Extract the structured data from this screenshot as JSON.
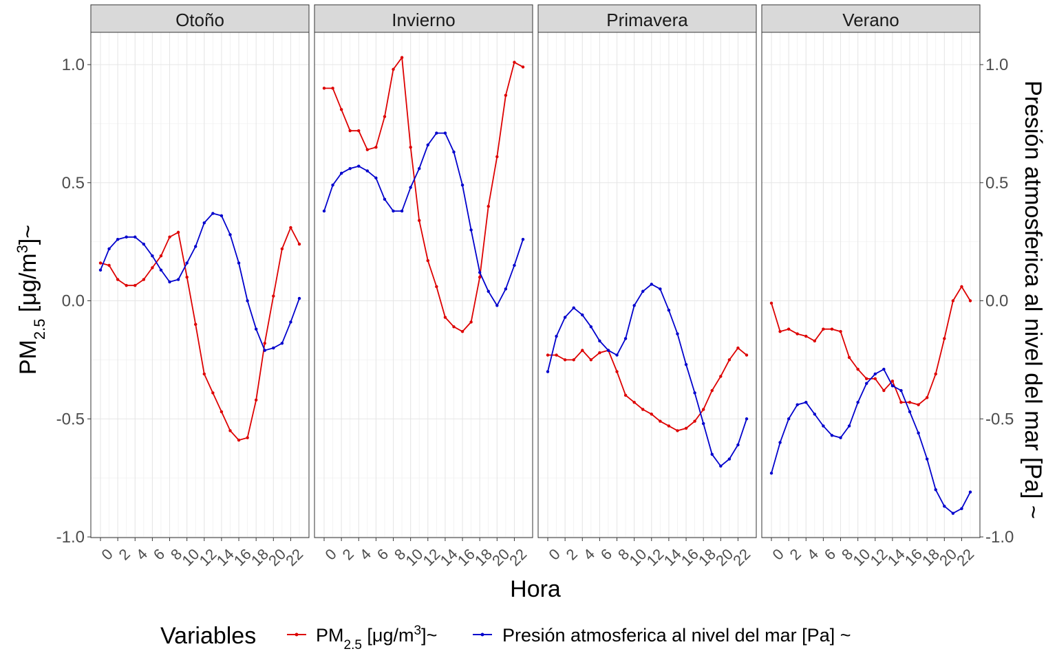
{
  "chart_data": {
    "type": "line",
    "xlabel": "Hora",
    "ylabel_left": {
      "base": "PM",
      "sub": "2.5",
      "rest": " [μg/m",
      "sup": "3",
      "tail": "]~"
    },
    "ylabel_right": "Presión atmosferica al nivel del mar [Pa] ~",
    "ylim": [
      -1.0,
      1.0
    ],
    "yticks": [
      "-1.0",
      "-0.5",
      "0.0",
      "0.5",
      "1.0"
    ],
    "yticks_values": [
      -1.0,
      -0.5,
      0.0,
      0.5,
      1.0
    ],
    "xticks": [
      "0",
      "2",
      "4",
      "6",
      "8",
      "10",
      "12",
      "14",
      "16",
      "18",
      "20",
      "22"
    ],
    "xticks_values": [
      0,
      2,
      4,
      6,
      8,
      10,
      12,
      14,
      16,
      18,
      20,
      22
    ],
    "xlim": [
      0,
      23
    ],
    "legend": {
      "title": "Variables",
      "position": "bottom",
      "items": [
        {
          "key": "pm",
          "label_base": "PM",
          "label_sub": "2.5",
          "label_rest": " [μg/m",
          "label_sup": "3",
          "label_tail": "]~"
        },
        {
          "key": "pres",
          "label": "Presión atmosferica al nivel del mar [Pa] ~"
        }
      ]
    },
    "colors": {
      "pm": "#dd0000",
      "pres": "#0000cc"
    },
    "grid": true,
    "facets": [
      {
        "name": "Otoño",
        "pm": [
          0.16,
          0.15,
          0.09,
          0.065,
          0.065,
          0.09,
          0.14,
          0.19,
          0.27,
          0.29,
          0.1,
          -0.1,
          -0.31,
          -0.39,
          -0.47,
          -0.55,
          -0.59,
          -0.58,
          -0.42,
          -0.18,
          0.02,
          0.22,
          0.31,
          0.24
        ],
        "pres": [
          0.13,
          0.22,
          0.26,
          0.27,
          0.27,
          0.24,
          0.19,
          0.13,
          0.08,
          0.09,
          0.16,
          0.23,
          0.33,
          0.37,
          0.36,
          0.28,
          0.16,
          0.0,
          -0.12,
          -0.21,
          -0.2,
          -0.18,
          -0.09,
          0.01
        ]
      },
      {
        "name": "Invierno",
        "pm": [
          0.9,
          0.9,
          0.81,
          0.72,
          0.72,
          0.64,
          0.65,
          0.78,
          0.98,
          1.03,
          0.65,
          0.34,
          0.17,
          0.06,
          -0.07,
          -0.11,
          -0.13,
          -0.09,
          0.1,
          0.4,
          0.61,
          0.87,
          1.01,
          0.99
        ],
        "pres": [
          0.38,
          0.49,
          0.54,
          0.56,
          0.57,
          0.55,
          0.52,
          0.43,
          0.38,
          0.38,
          0.48,
          0.56,
          0.66,
          0.71,
          0.71,
          0.63,
          0.49,
          0.3,
          0.12,
          0.04,
          -0.02,
          0.05,
          0.15,
          0.26
        ]
      },
      {
        "name": "Primavera",
        "pm": [
          -0.23,
          -0.23,
          -0.25,
          -0.25,
          -0.21,
          -0.25,
          -0.22,
          -0.21,
          -0.3,
          -0.4,
          -0.43,
          -0.46,
          -0.48,
          -0.51,
          -0.53,
          -0.55,
          -0.54,
          -0.51,
          -0.46,
          -0.38,
          -0.32,
          -0.25,
          -0.2,
          -0.23
        ],
        "pres": [
          -0.3,
          -0.15,
          -0.07,
          -0.03,
          -0.06,
          -0.11,
          -0.17,
          -0.21,
          -0.23,
          -0.16,
          -0.02,
          0.04,
          0.07,
          0.05,
          -0.04,
          -0.14,
          -0.27,
          -0.39,
          -0.52,
          -0.65,
          -0.7,
          -0.67,
          -0.61,
          -0.5
        ]
      },
      {
        "name": "Verano",
        "pm": [
          -0.01,
          -0.13,
          -0.12,
          -0.14,
          -0.15,
          -0.17,
          -0.12,
          -0.12,
          -0.13,
          -0.24,
          -0.29,
          -0.33,
          -0.33,
          -0.38,
          -0.34,
          -0.43,
          -0.43,
          -0.44,
          -0.41,
          -0.31,
          -0.16,
          0.0,
          0.06,
          0.0
        ],
        "pres": [
          -0.73,
          -0.6,
          -0.5,
          -0.44,
          -0.43,
          -0.48,
          -0.53,
          -0.57,
          -0.58,
          -0.53,
          -0.43,
          -0.35,
          -0.31,
          -0.29,
          -0.36,
          -0.38,
          -0.47,
          -0.56,
          -0.67,
          -0.8,
          -0.87,
          -0.9,
          -0.88,
          -0.81
        ]
      }
    ]
  }
}
